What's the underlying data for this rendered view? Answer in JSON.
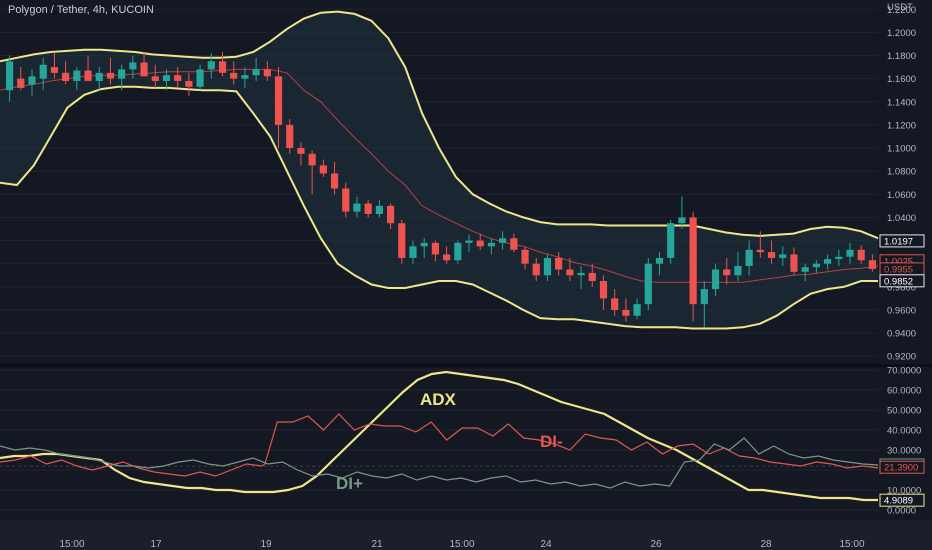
{
  "header": {
    "title": "Polygon / Tether, 4h, KUCOIN",
    "currency": "USDT"
  },
  "chart_data": [
    {
      "type": "candlestick",
      "title": "Polygon / Tether, 4h, KUCOIN",
      "ylabel": "USDT",
      "ylim": [
        0.915,
        1.228
      ],
      "y_ticks": [
        "1.2200",
        "1.2000",
        "1.1800",
        "1.1600",
        "1.1400",
        "1.1200",
        "1.1000",
        "1.0800",
        "1.0600",
        "1.0400",
        "1.0200",
        "1.0000",
        "0.9800",
        "0.9600",
        "0.9400",
        "0.9200"
      ],
      "y_tick_values": [
        1.22,
        1.2,
        1.18,
        1.16,
        1.14,
        1.12,
        1.1,
        1.08,
        1.06,
        1.04,
        1.02,
        1.0,
        0.98,
        0.96,
        0.94,
        0.92
      ],
      "price_labels": [
        {
          "text": "1.0197",
          "value": 1.0197,
          "style": "outline"
        },
        {
          "text": "1.0025",
          "value": 1.0025,
          "style": "red"
        },
        {
          "text": "0.9955",
          "value": 0.9955,
          "style": "red"
        },
        {
          "text": "0.9852",
          "value": 0.9852,
          "style": "outline"
        }
      ],
      "bands": {
        "upper": [
          1.175,
          1.178,
          1.181,
          1.183,
          1.184,
          1.185,
          1.185,
          1.184,
          1.183,
          1.181,
          1.18,
          1.179,
          1.178,
          1.178,
          1.179,
          1.183,
          1.192,
          1.203,
          1.212,
          1.217,
          1.218,
          1.216,
          1.21,
          1.195,
          1.17,
          1.13,
          1.1,
          1.075,
          1.06,
          1.052,
          1.045,
          1.04,
          1.036,
          1.034,
          1.034,
          1.034,
          1.033,
          1.033,
          1.033,
          1.033,
          1.033,
          1.033,
          1.03,
          1.027,
          1.025,
          1.024,
          1.025,
          1.026,
          1.03,
          1.032,
          1.031,
          1.028,
          1.022
        ],
        "lower": [
          1.07,
          1.068,
          1.085,
          1.11,
          1.135,
          1.146,
          1.151,
          1.153,
          1.153,
          1.152,
          1.152,
          1.151,
          1.15,
          1.15,
          1.149,
          1.13,
          1.11,
          1.08,
          1.05,
          1.022,
          1.0,
          0.99,
          0.982,
          0.979,
          0.979,
          0.982,
          0.985,
          0.985,
          0.982,
          0.975,
          0.968,
          0.96,
          0.953,
          0.952,
          0.952,
          0.95,
          0.948,
          0.946,
          0.945,
          0.945,
          0.945,
          0.944,
          0.944,
          0.944,
          0.945,
          0.948,
          0.955,
          0.965,
          0.974,
          0.978,
          0.98,
          0.985,
          0.985
        ],
        "basis": [
          1.15,
          1.153,
          1.155,
          1.158,
          1.16,
          1.162,
          1.163,
          1.163,
          1.164,
          1.165,
          1.166,
          1.166,
          1.166,
          1.167,
          1.168,
          1.168,
          1.168,
          1.165,
          1.15,
          1.14,
          1.124,
          1.109,
          1.095,
          1.08,
          1.068,
          1.05,
          1.042,
          1.035,
          1.028,
          1.022,
          1.018,
          1.015,
          1.01,
          1.006,
          1.001,
          0.998,
          0.994,
          0.989,
          0.985,
          0.984,
          0.984,
          0.984,
          0.984,
          0.984,
          0.984,
          0.986,
          0.988,
          0.99,
          0.991,
          0.993,
          0.995,
          0.996,
          0.998
        ]
      },
      "candles": [
        {
          "o": 1.15,
          "h": 1.18,
          "l": 1.14,
          "c": 1.175
        },
        {
          "o": 1.16,
          "h": 1.17,
          "l": 1.15,
          "c": 1.152
        },
        {
          "o": 1.155,
          "h": 1.168,
          "l": 1.145,
          "c": 1.162
        },
        {
          "o": 1.16,
          "h": 1.178,
          "l": 1.15,
          "c": 1.172
        },
        {
          "o": 1.17,
          "h": 1.183,
          "l": 1.16,
          "c": 1.165
        },
        {
          "o": 1.165,
          "h": 1.175,
          "l": 1.155,
          "c": 1.158
        },
        {
          "o": 1.158,
          "h": 1.17,
          "l": 1.15,
          "c": 1.167
        },
        {
          "o": 1.167,
          "h": 1.18,
          "l": 1.16,
          "c": 1.158
        },
        {
          "o": 1.158,
          "h": 1.17,
          "l": 1.15,
          "c": 1.165
        },
        {
          "o": 1.165,
          "h": 1.178,
          "l": 1.155,
          "c": 1.16
        },
        {
          "o": 1.16,
          "h": 1.172,
          "l": 1.15,
          "c": 1.168
        },
        {
          "o": 1.168,
          "h": 1.18,
          "l": 1.16,
          "c": 1.174
        },
        {
          "o": 1.174,
          "h": 1.183,
          "l": 1.165,
          "c": 1.162
        },
        {
          "o": 1.162,
          "h": 1.172,
          "l": 1.152,
          "c": 1.158
        },
        {
          "o": 1.158,
          "h": 1.168,
          "l": 1.15,
          "c": 1.163
        },
        {
          "o": 1.163,
          "h": 1.17,
          "l": 1.152,
          "c": 1.158
        },
        {
          "o": 1.158,
          "h": 1.165,
          "l": 1.145,
          "c": 1.153
        },
        {
          "o": 1.153,
          "h": 1.172,
          "l": 1.15,
          "c": 1.168
        },
        {
          "o": 1.168,
          "h": 1.182,
          "l": 1.16,
          "c": 1.175
        },
        {
          "o": 1.175,
          "h": 1.183,
          "l": 1.162,
          "c": 1.165
        },
        {
          "o": 1.165,
          "h": 1.175,
          "l": 1.155,
          "c": 1.16
        },
        {
          "o": 1.16,
          "h": 1.17,
          "l": 1.152,
          "c": 1.163
        },
        {
          "o": 1.163,
          "h": 1.178,
          "l": 1.158,
          "c": 1.168
        },
        {
          "o": 1.168,
          "h": 1.175,
          "l": 1.158,
          "c": 1.162
        },
        {
          "o": 1.162,
          "h": 1.17,
          "l": 1.1,
          "c": 1.12
        },
        {
          "o": 1.12,
          "h": 1.125,
          "l": 1.095,
          "c": 1.1
        },
        {
          "o": 1.1,
          "h": 1.105,
          "l": 1.085,
          "c": 1.095
        },
        {
          "o": 1.095,
          "h": 1.098,
          "l": 1.06,
          "c": 1.085
        },
        {
          "o": 1.085,
          "h": 1.09,
          "l": 1.075,
          "c": 1.078
        },
        {
          "o": 1.078,
          "h": 1.088,
          "l": 1.06,
          "c": 1.065
        },
        {
          "o": 1.065,
          "h": 1.07,
          "l": 1.04,
          "c": 1.045
        },
        {
          "o": 1.045,
          "h": 1.058,
          "l": 1.04,
          "c": 1.052
        },
        {
          "o": 1.052,
          "h": 1.055,
          "l": 1.04,
          "c": 1.043
        },
        {
          "o": 1.043,
          "h": 1.055,
          "l": 1.04,
          "c": 1.05
        },
        {
          "o": 1.05,
          "h": 1.052,
          "l": 1.03,
          "c": 1.035
        },
        {
          "o": 1.035,
          "h": 1.038,
          "l": 1.0,
          "c": 1.005
        },
        {
          "o": 1.005,
          "h": 1.02,
          "l": 1.0,
          "c": 1.015
        },
        {
          "o": 1.015,
          "h": 1.022,
          "l": 1.005,
          "c": 1.018
        },
        {
          "o": 1.018,
          "h": 1.02,
          "l": 1.002,
          "c": 1.008
        },
        {
          "o": 1.008,
          "h": 1.015,
          "l": 1.0,
          "c": 1.003
        },
        {
          "o": 1.003,
          "h": 1.02,
          "l": 1.0,
          "c": 1.018
        },
        {
          "o": 1.018,
          "h": 1.025,
          "l": 1.01,
          "c": 1.02
        },
        {
          "o": 1.02,
          "h": 1.026,
          "l": 1.012,
          "c": 1.015
        },
        {
          "o": 1.015,
          "h": 1.022,
          "l": 1.008,
          "c": 1.018
        },
        {
          "o": 1.018,
          "h": 1.028,
          "l": 1.012,
          "c": 1.022
        },
        {
          "o": 1.022,
          "h": 1.026,
          "l": 1.01,
          "c": 1.012
        },
        {
          "o": 1.012,
          "h": 1.015,
          "l": 0.995,
          "c": 1.0
        },
        {
          "o": 1.0,
          "h": 1.005,
          "l": 0.985,
          "c": 0.99
        },
        {
          "o": 0.99,
          "h": 1.008,
          "l": 0.985,
          "c": 1.005
        },
        {
          "o": 1.005,
          "h": 1.01,
          "l": 0.99,
          "c": 0.995
        },
        {
          "o": 0.995,
          "h": 1.005,
          "l": 0.985,
          "c": 0.99
        },
        {
          "o": 0.99,
          "h": 0.998,
          "l": 0.978,
          "c": 0.992
        },
        {
          "o": 0.992,
          "h": 1.0,
          "l": 0.98,
          "c": 0.985
        },
        {
          "o": 0.985,
          "h": 0.99,
          "l": 0.96,
          "c": 0.97
        },
        {
          "o": 0.97,
          "h": 0.978,
          "l": 0.955,
          "c": 0.96
        },
        {
          "o": 0.96,
          "h": 0.97,
          "l": 0.95,
          "c": 0.955
        },
        {
          "o": 0.955,
          "h": 0.97,
          "l": 0.952,
          "c": 0.965
        },
        {
          "o": 0.965,
          "h": 1.005,
          "l": 0.96,
          "c": 1.0
        },
        {
          "o": 1.0,
          "h": 1.01,
          "l": 0.99,
          "c": 1.005
        },
        {
          "o": 1.005,
          "h": 1.038,
          "l": 1.0,
          "c": 1.035
        },
        {
          "o": 1.035,
          "h": 1.058,
          "l": 1.03,
          "c": 1.04
        },
        {
          "o": 1.04,
          "h": 1.045,
          "l": 0.95,
          "c": 0.965
        },
        {
          "o": 0.965,
          "h": 0.985,
          "l": 0.945,
          "c": 0.978
        },
        {
          "o": 0.978,
          "h": 1.0,
          "l": 0.972,
          "c": 0.995
        },
        {
          "o": 0.995,
          "h": 1.005,
          "l": 0.982,
          "c": 0.99
        },
        {
          "o": 0.99,
          "h": 1.01,
          "l": 0.985,
          "c": 0.998
        },
        {
          "o": 0.998,
          "h": 1.02,
          "l": 0.99,
          "c": 1.012
        },
        {
          "o": 1.012,
          "h": 1.028,
          "l": 1.005,
          "c": 1.01
        },
        {
          "o": 1.01,
          "h": 1.02,
          "l": 1.0,
          "c": 1.005
        },
        {
          "o": 1.005,
          "h": 1.015,
          "l": 0.998,
          "c": 1.008
        },
        {
          "o": 1.008,
          "h": 1.014,
          "l": 0.99,
          "c": 0.993
        },
        {
          "o": 0.993,
          "h": 1.0,
          "l": 0.985,
          "c": 0.997
        },
        {
          "o": 0.997,
          "h": 1.003,
          "l": 0.992,
          "c": 1.0
        },
        {
          "o": 1.0,
          "h": 1.008,
          "l": 0.995,
          "c": 1.004
        },
        {
          "o": 1.004,
          "h": 1.012,
          "l": 0.998,
          "c": 1.006
        },
        {
          "o": 1.006,
          "h": 1.018,
          "l": 1.0,
          "c": 1.012
        },
        {
          "o": 1.012,
          "h": 1.016,
          "l": 1.0,
          "c": 1.003
        },
        {
          "o": 1.003,
          "h": 1.008,
          "l": 0.993,
          "c": 0.9955
        }
      ]
    },
    {
      "type": "line",
      "ylim": [
        -4,
        72
      ],
      "y_ticks": [
        "70.0000",
        "60.0000",
        "50.0000",
        "40.0000",
        "30.0000",
        "20.0000",
        "10.0000",
        "0.0000"
      ],
      "y_tick_values": [
        70,
        60,
        50,
        40,
        30,
        20,
        10,
        0
      ],
      "value_labels": [
        {
          "text": "22.5103",
          "value": 22.5103,
          "color": "#7a9888"
        },
        {
          "text": "21.3900",
          "value": 21.39,
          "color": "#e0574f"
        },
        {
          "text": "4.9089",
          "value": 4.9089,
          "color": "#efe68a"
        }
      ],
      "annotations": [
        {
          "text": "ADX",
          "color": "#efe68a"
        },
        {
          "text": "DI-",
          "color": "#e0574f"
        },
        {
          "text": "DI+",
          "color": "#7a9888"
        }
      ],
      "series": [
        {
          "name": "ADX",
          "color": "#efe68a",
          "values": [
            26,
            27,
            27,
            28,
            28,
            27,
            26,
            25,
            20,
            16,
            14,
            13,
            12,
            11,
            11,
            10,
            10,
            9,
            9,
            9,
            10,
            12,
            17,
            24,
            31,
            38,
            45,
            52,
            59,
            65,
            68,
            69,
            68,
            67,
            66,
            65,
            63,
            60,
            57,
            54,
            52,
            50,
            48,
            44,
            40,
            36,
            33,
            30,
            26,
            22,
            18,
            14,
            10,
            10,
            9,
            8,
            7,
            6,
            6,
            6,
            5,
            5
          ],
          "x_index": [
            0,
            1,
            2,
            3,
            4,
            5,
            6,
            7,
            8,
            9,
            10,
            11,
            12,
            13,
            14,
            15,
            16,
            17,
            18,
            19,
            20,
            21,
            22,
            23,
            24,
            25,
            26,
            27,
            28,
            29,
            30,
            31,
            32,
            33,
            34,
            35,
            36,
            37,
            38,
            39,
            40,
            41,
            42,
            43,
            44,
            45,
            46,
            47,
            48,
            49,
            50,
            51,
            52,
            53,
            54,
            55,
            56,
            57,
            58,
            59,
            60,
            61
          ]
        },
        {
          "name": "DI-",
          "color": "#e0574f",
          "values": [
            24,
            25,
            27,
            23,
            25,
            22,
            20,
            22,
            24,
            21,
            19,
            18,
            17,
            19,
            17,
            20,
            23,
            22,
            23,
            44,
            44,
            47,
            40,
            48,
            40,
            43,
            42,
            42,
            39,
            44,
            35,
            41,
            41,
            37,
            43,
            36,
            35,
            33,
            30,
            38,
            36,
            35,
            30,
            34,
            28,
            32,
            33,
            28,
            31,
            27,
            26,
            24,
            23,
            22,
            24,
            23,
            21,
            22,
            21
          ],
          "x_index": [
            0,
            1,
            2,
            3,
            4,
            5,
            6,
            7,
            8,
            9,
            10,
            11,
            12,
            13,
            14,
            15,
            16,
            17,
            17.2,
            18,
            19,
            20,
            21,
            22,
            23,
            24,
            25,
            26,
            27,
            28,
            29,
            30,
            31,
            32,
            33,
            34,
            35,
            36,
            37,
            38,
            39,
            40,
            41,
            42,
            43,
            44,
            45,
            46,
            47,
            48,
            49,
            50,
            51,
            52,
            53,
            54,
            55,
            56,
            57
          ]
        },
        {
          "name": "DI+",
          "color": "#7a9888",
          "values": [
            32,
            30,
            31,
            30,
            28,
            27,
            26,
            24,
            22,
            22,
            21,
            22,
            24,
            25,
            23,
            22,
            24,
            26,
            23,
            24,
            20,
            17,
            18,
            16,
            19,
            17,
            16,
            18,
            15,
            17,
            15,
            16,
            14,
            16,
            17,
            14,
            15,
            13,
            14,
            12,
            13,
            11,
            14,
            12,
            13,
            12,
            24,
            25,
            33,
            30,
            36,
            28,
            32,
            28,
            26,
            27,
            25,
            24,
            23,
            22.5
          ],
          "x_index": [
            0,
            1,
            2,
            3,
            4,
            5,
            6,
            7,
            8,
            9,
            10,
            11,
            12,
            13,
            14,
            15,
            16,
            17,
            18,
            19,
            20,
            21,
            22,
            23,
            24,
            25,
            26,
            27,
            28,
            29,
            30,
            31,
            32,
            33,
            34,
            35,
            36,
            37,
            38,
            39,
            40,
            41,
            42,
            43,
            44,
            45,
            46,
            47,
            48,
            49,
            50,
            51,
            52,
            53,
            54,
            55,
            56,
            57,
            58,
            59
          ]
        }
      ]
    }
  ],
  "x_axis": {
    "ticks": [
      "15:00",
      "17",
      "19",
      "21",
      "15:00",
      "24",
      "26",
      "28",
      "15:00"
    ]
  }
}
